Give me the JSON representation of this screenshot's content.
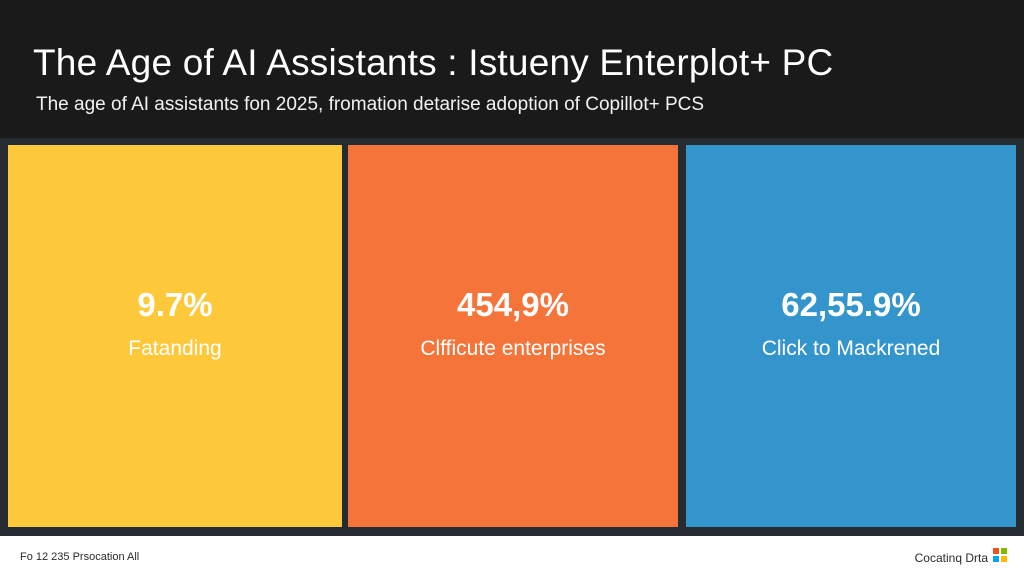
{
  "header": {
    "title": "The Age of AI Assistants : Istueny Enterplot+ PC",
    "subtitle": "The age of AI assistants fon 2025, fromation detarise adoption of Copillot+ PCS"
  },
  "panels": [
    {
      "value": "9.7%",
      "label": "Fatanding",
      "color": "#fdc93b"
    },
    {
      "value": "454,9%",
      "label": "Clfficute enterprises",
      "color": "#f5743a"
    },
    {
      "value": "62,55.9%",
      "label": "Click to Mackrened",
      "color": "#3395cc"
    }
  ],
  "footer": {
    "left_text": "Fo 12 235 Prsocation All",
    "right_text": "Cocatinq Drta",
    "logo_icon": "windows-logo-icon",
    "logo_colors": [
      "#f25022",
      "#7fba00",
      "#00a4ef",
      "#ffb900"
    ]
  },
  "colors": {
    "header_bg": "#1a1a1b",
    "page_bg": "#262b31",
    "footer_bg": "#ffffff"
  }
}
